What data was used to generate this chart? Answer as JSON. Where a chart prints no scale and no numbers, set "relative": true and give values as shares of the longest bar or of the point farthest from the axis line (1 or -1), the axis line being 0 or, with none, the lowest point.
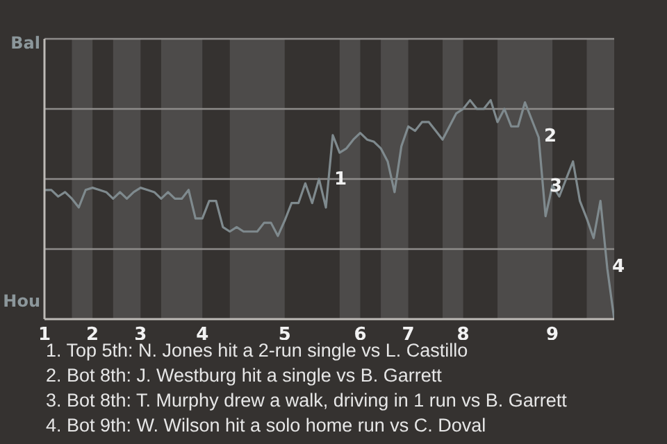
{
  "chart_data": {
    "type": "line",
    "relative": true,
    "categories": [
      "1",
      null,
      null,
      null,
      null,
      null,
      null,
      "2",
      null,
      null,
      null,
      null,
      null,
      null,
      "3",
      null,
      null,
      null,
      null,
      null,
      null,
      null,
      null,
      "4",
      null,
      null,
      null,
      null,
      null,
      null,
      null,
      null,
      null,
      null,
      null,
      "5",
      null,
      null,
      null,
      null,
      null,
      null,
      null,
      null,
      null,
      null,
      "6",
      null,
      null,
      null,
      null,
      null,
      null,
      "7",
      null,
      null,
      null,
      null,
      null,
      null,
      null,
      "8",
      null,
      null,
      null,
      null,
      null,
      null,
      null,
      null,
      null,
      null,
      null,
      null,
      "9",
      null,
      null,
      null,
      null,
      null,
      null,
      null,
      null,
      null
    ],
    "series": [
      {
        "color": "#7f8a8e",
        "values": [
          0.59,
          0.59,
          0.56,
          0.58,
          0.55,
          0.51,
          0.59,
          0.6,
          0.59,
          0.58,
          0.55,
          0.58,
          0.55,
          0.58,
          0.6,
          0.59,
          0.58,
          0.55,
          0.58,
          0.55,
          0.55,
          0.59,
          0.46,
          0.46,
          0.54,
          0.54,
          0.42,
          0.4,
          0.42,
          0.4,
          0.4,
          0.4,
          0.44,
          0.44,
          0.38,
          0.45,
          0.53,
          0.53,
          0.62,
          0.53,
          0.64,
          0.51,
          0.84,
          0.76,
          0.78,
          0.82,
          0.85,
          0.82,
          0.81,
          0.78,
          0.72,
          0.58,
          0.79,
          0.88,
          0.86,
          0.9,
          0.9,
          0.86,
          0.82,
          0.88,
          0.94,
          0.96,
          1,
          0.96,
          0.96,
          1,
          0.9,
          0.96,
          0.88,
          0.88,
          0.99,
          0.91,
          0.83,
          0.47,
          0.61,
          0.56,
          0.64,
          0.72,
          0.54,
          0.46,
          0.37,
          0.54,
          0.23,
          0
        ]
      }
    ],
    "ref_lines": [
      {
        "axis": "y",
        "value": 0.32,
        "color": "#8e8c8a"
      },
      {
        "axis": "y",
        "value": 0.64,
        "color": "#8e8c8a"
      },
      {
        "axis": "y",
        "value": 0.96,
        "color": "#8e8c8a"
      },
      {
        "axis": "y",
        "value": 1.28,
        "color": "#8e8c8a"
      }
    ],
    "annotations": [
      "Bal",
      "Hou",
      "1",
      "2",
      "3",
      "4",
      "1. Top 5th: N. Jones hit a 2-run single vs L. Castillo",
      "2. Bot 8th: J. Westburg hit a single vs B. Garrett",
      "3. Bot 8th: T. Murphy drew a walk, driving in 1 run vs B. Garrett",
      "4. Bot 9th: W. Wilson hit a solo home run vs C. Doval"
    ]
  }
}
